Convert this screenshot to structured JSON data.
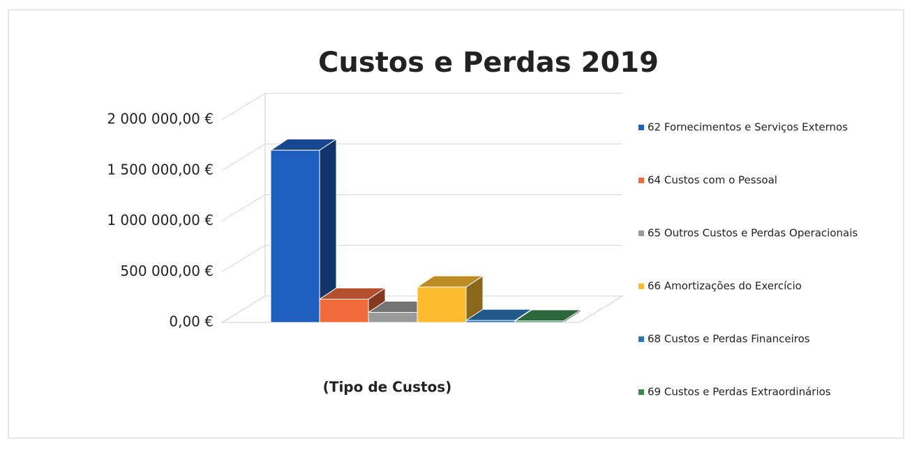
{
  "chart_data": {
    "type": "bar",
    "title": "Custos e Perdas 2019",
    "x_label": "(Tipo de Custos)",
    "categories": [
      null
    ],
    "series": [
      {
        "name": "62 Fornecimentos e Serviços Externos",
        "color": "#1f5fbf",
        "values": [
          1700000
        ]
      },
      {
        "name": "64 Custos com o Pessoal",
        "color": "#f06a3c",
        "values": [
          230000
        ]
      },
      {
        "name": "65 Outros Custos e Perdas Operacionais",
        "color": "#9a9a9a",
        "values": [
          100000
        ]
      },
      {
        "name": "66 Amortizações do Exercício",
        "color": "#fdbb30",
        "values": [
          350000
        ]
      },
      {
        "name": "68 Custos e Perdas Financeiros",
        "color": "#2a75b8",
        "values": [
          20000
        ]
      },
      {
        "name": "69 Custos e Perdas Extraordinários",
        "color": "#3a8a4e",
        "values": [
          15000
        ]
      }
    ],
    "ylim": [
      0,
      2000000
    ],
    "yticks": [
      {
        "value": 0,
        "label": "0,00 €"
      },
      {
        "value": 500000,
        "label": "500 000,00 €"
      },
      {
        "value": 1000000,
        "label": "1 000 000,00 €"
      },
      {
        "value": 1500000,
        "label": "1 500 000,00 €"
      },
      {
        "value": 2000000,
        "label": "2 000 000,00 €"
      }
    ],
    "grid": true,
    "legend": "right"
  }
}
